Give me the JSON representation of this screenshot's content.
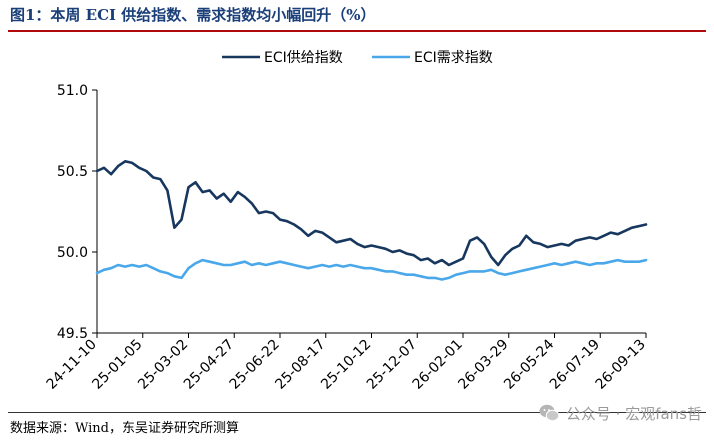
{
  "figure": {
    "title": "图1：本周 ECI 供给指数、需求指数均小幅回升（%）",
    "source": "数据来源：Wind，东吴证券研究所测算",
    "watermark": "公众号 · 宏观fans哲"
  },
  "chart_data": {
    "type": "line",
    "title": "",
    "xlabel": "",
    "ylabel": "",
    "ylim": [
      49.5,
      51.0
    ],
    "yticks": [
      "51.0",
      "50.5",
      "50.0",
      "49.5"
    ],
    "x_tick_labels": [
      "24-11-10",
      "25-01-05",
      "25-03-02",
      "25-04-27",
      "25-06-22",
      "25-08-17",
      "25-10-12",
      "25-12-07",
      "26-02-01",
      "26-03-29",
      "26-05-24",
      "26-07-19",
      "26-09-13"
    ],
    "grid": false,
    "legend_position": "top-center",
    "series": [
      {
        "name": "ECI供给指数",
        "color": "#17375e",
        "values": [
          50.5,
          50.52,
          50.48,
          50.53,
          50.56,
          50.55,
          50.52,
          50.5,
          50.46,
          50.45,
          50.38,
          50.15,
          50.2,
          50.4,
          50.43,
          50.37,
          50.38,
          50.33,
          50.36,
          50.31,
          50.37,
          50.34,
          50.3,
          50.24,
          50.25,
          50.24,
          50.2,
          50.19,
          50.17,
          50.14,
          50.1,
          50.13,
          50.12,
          50.09,
          50.06,
          50.07,
          50.08,
          50.05,
          50.03,
          50.04,
          50.03,
          50.02,
          50.0,
          50.01,
          49.99,
          49.98,
          49.95,
          49.96,
          49.93,
          49.95,
          49.92,
          49.94,
          49.96,
          50.07,
          50.09,
          50.05,
          49.97,
          49.92,
          49.98,
          50.02,
          50.04,
          50.1,
          50.06,
          50.05,
          50.03,
          50.04,
          50.05,
          50.04,
          50.07,
          50.08,
          50.09,
          50.08,
          50.1,
          50.12,
          50.11,
          50.13,
          50.15,
          50.16,
          50.17
        ]
      },
      {
        "name": "ECI需求指数",
        "color": "#4aa8ea",
        "values": [
          49.87,
          49.89,
          49.9,
          49.92,
          49.91,
          49.92,
          49.91,
          49.92,
          49.9,
          49.88,
          49.87,
          49.85,
          49.84,
          49.9,
          49.93,
          49.95,
          49.94,
          49.93,
          49.92,
          49.92,
          49.93,
          49.94,
          49.92,
          49.93,
          49.92,
          49.93,
          49.94,
          49.93,
          49.92,
          49.91,
          49.9,
          49.91,
          49.92,
          49.91,
          49.92,
          49.91,
          49.92,
          49.91,
          49.9,
          49.9,
          49.89,
          49.88,
          49.88,
          49.87,
          49.86,
          49.86,
          49.85,
          49.84,
          49.84,
          49.83,
          49.84,
          49.86,
          49.87,
          49.88,
          49.88,
          49.88,
          49.89,
          49.87,
          49.86,
          49.87,
          49.88,
          49.89,
          49.9,
          49.91,
          49.92,
          49.93,
          49.92,
          49.93,
          49.94,
          49.93,
          49.92,
          49.93,
          49.93,
          49.94,
          49.95,
          49.94,
          49.94,
          49.94,
          49.95
        ]
      }
    ]
  }
}
